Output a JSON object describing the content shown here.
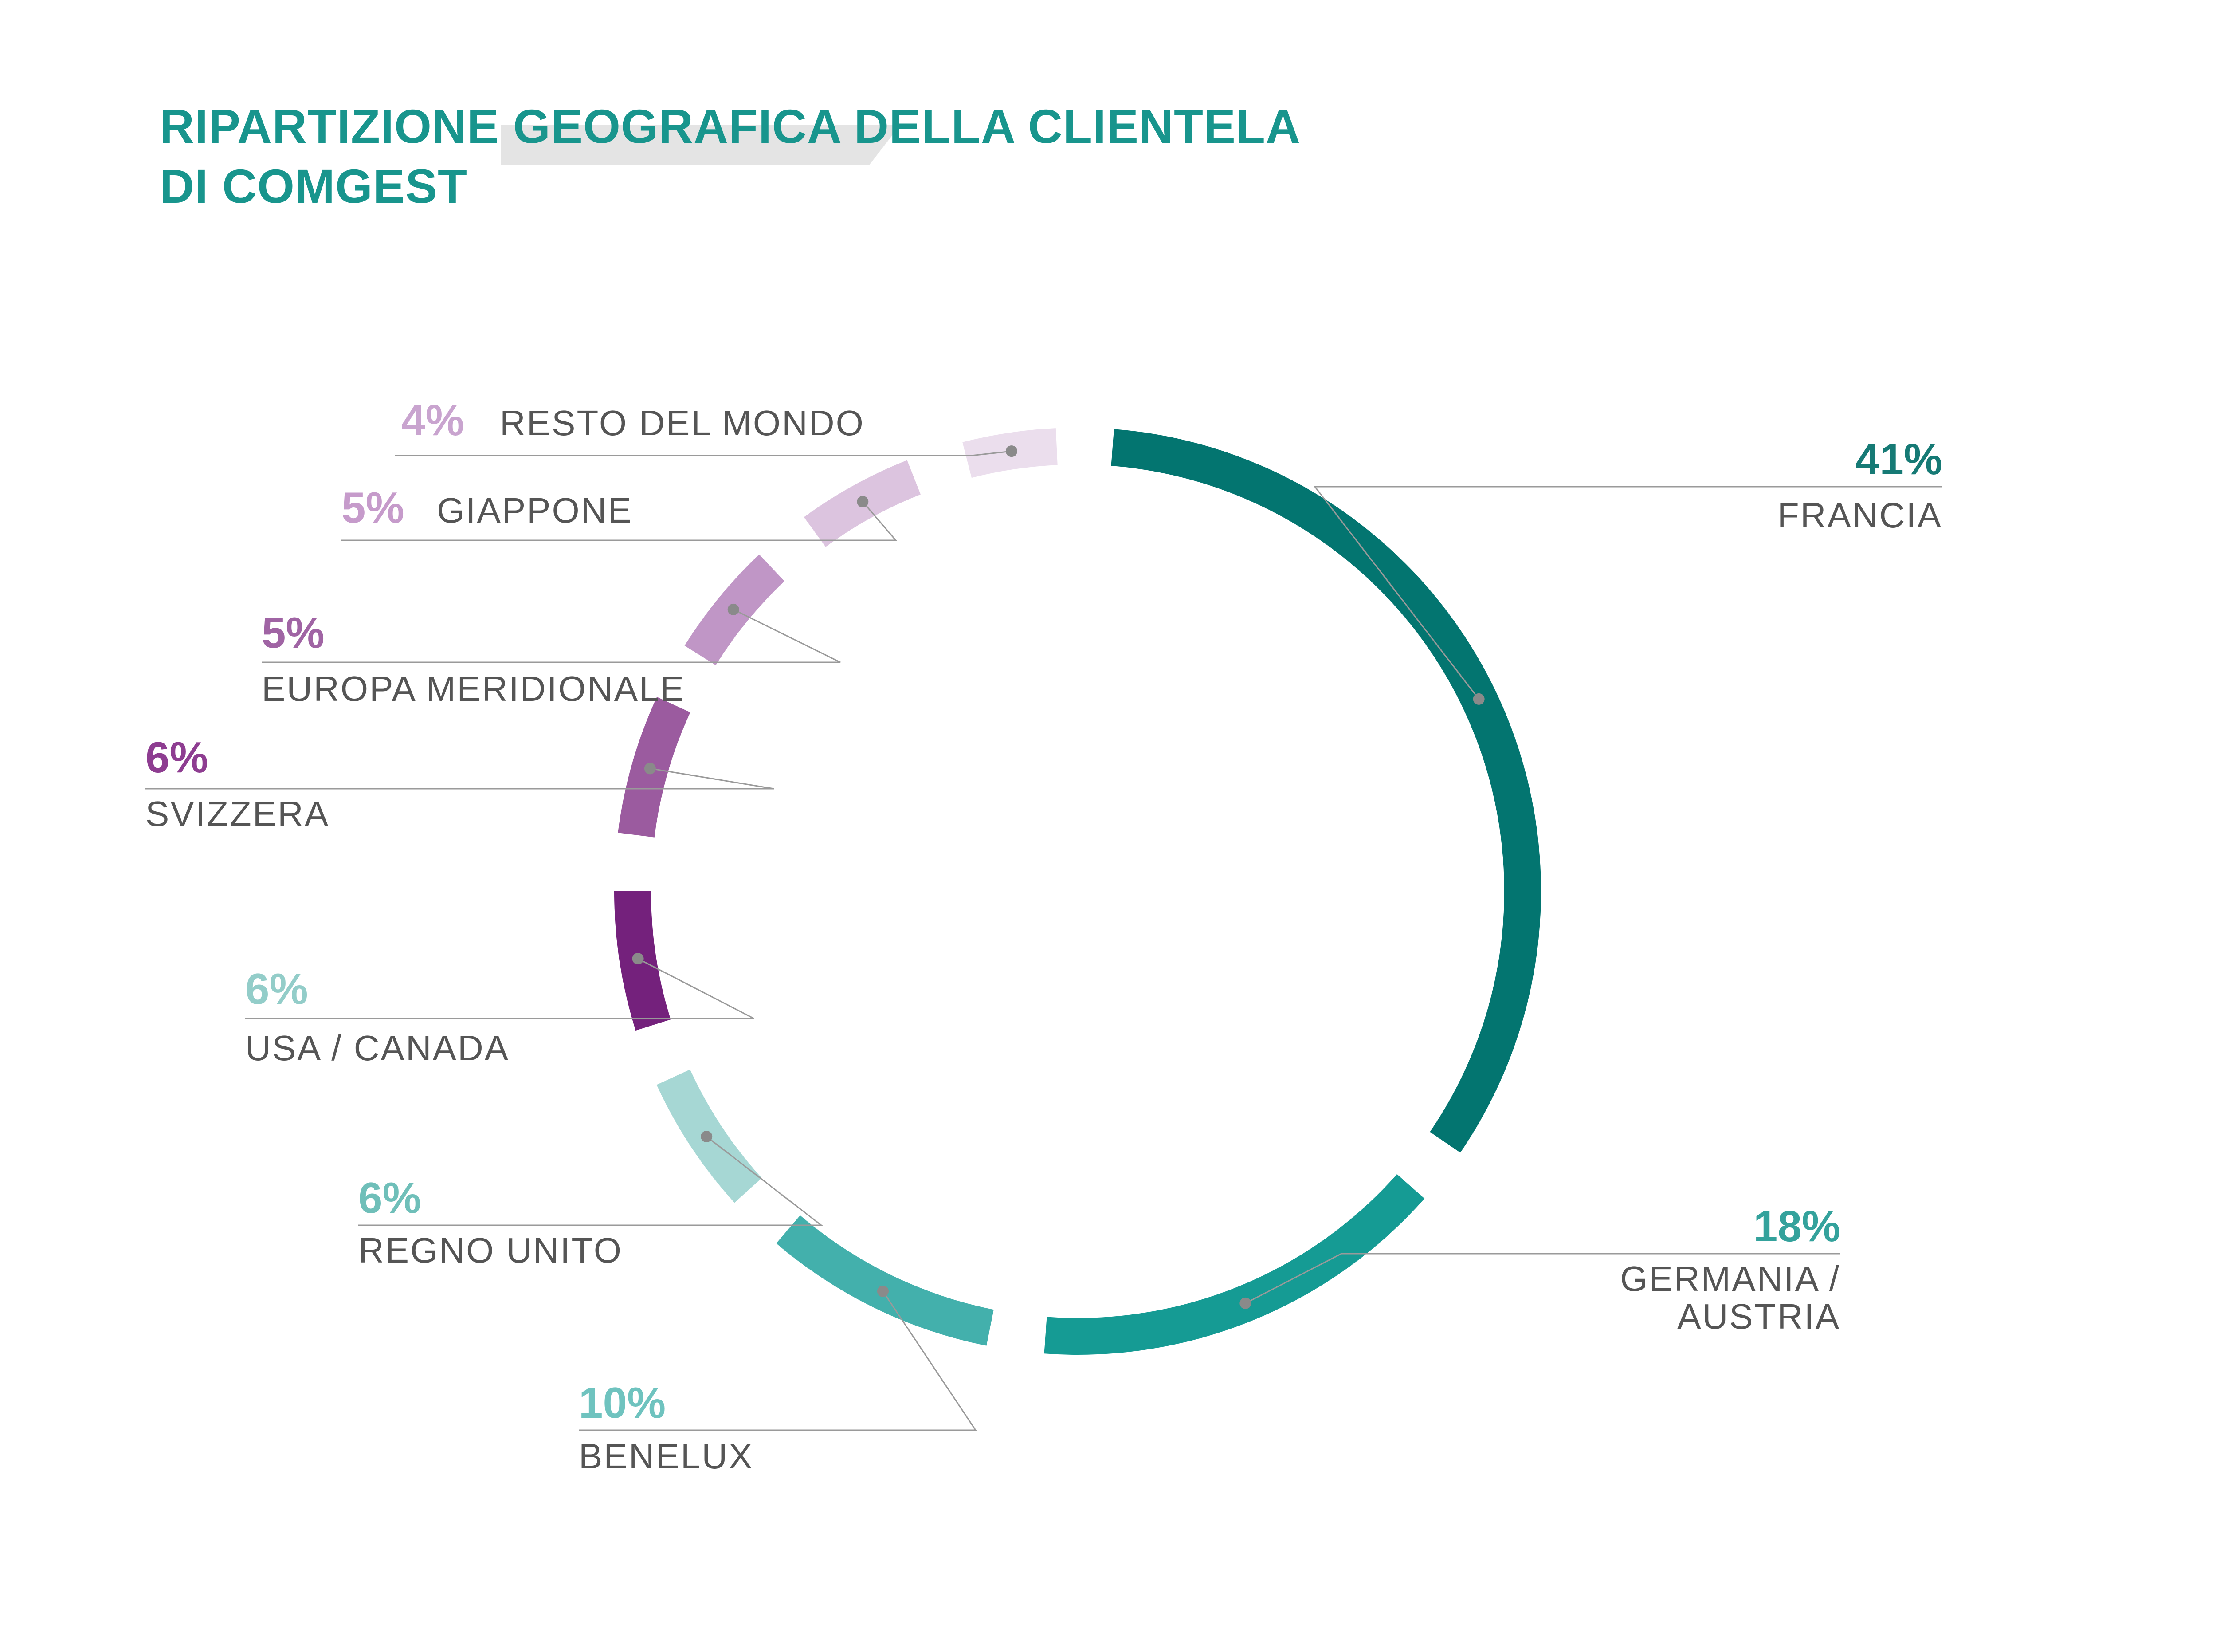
{
  "title_line1": "RIPARTIZIONE GEOGRAFICA DELLA CLIENTELA",
  "title_line2": "DI COMGEST",
  "chart_data": {
    "type": "pie",
    "style": "segmented-ring",
    "categories": [
      "FRANCIA",
      "GERMANIA / AUSTRIA",
      "BENELUX",
      "REGNO UNITO",
      "USA / CANADA",
      "SVIZZERA",
      "EUROPA MERIDIONALE",
      "GIAPPONE",
      "RESTO DEL MONDO"
    ],
    "values": [
      41,
      18,
      10,
      6,
      6,
      6,
      5,
      5,
      4
    ],
    "percent_labels": [
      "41%",
      "18%",
      "10%",
      "6%",
      "6%",
      "6%",
      "5%",
      "5%",
      "4%"
    ],
    "colors": [
      "#037570",
      "#159b94",
      "#43b0ac",
      "#a6d7d4",
      "#74217c",
      "#9b5b9f",
      "#c096c6",
      "#dcc4df",
      "#ebdeed"
    ],
    "label_colors": [
      "#167a75",
      "#34a29c",
      "#6fc3bf",
      "#6fbfb9",
      "#93cdc9",
      "#8e3d91",
      "#a064a4",
      "#c69bcb",
      "#c9a4cf"
    ],
    "label_lines": [
      [
        "FRANCIA"
      ],
      [
        "GERMANIA /",
        "AUSTRIA"
      ],
      [
        "BENELUX"
      ],
      [
        "REGNO UNITO"
      ],
      [
        "USA / CANADA"
      ],
      [
        "SVIZZERA"
      ],
      [
        "EUROPA MERIDIONALE"
      ],
      [
        "GIAPPONE"
      ],
      [
        "RESTO DEL MONDO"
      ]
    ]
  }
}
